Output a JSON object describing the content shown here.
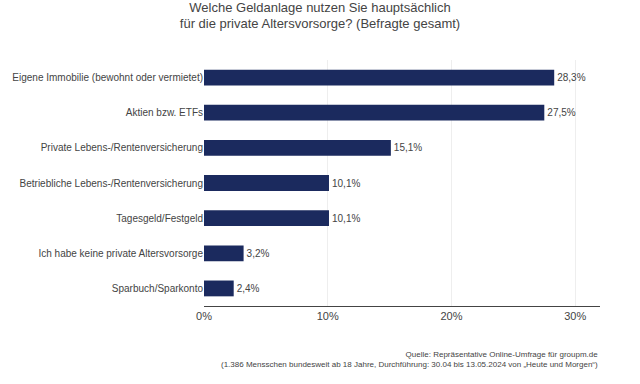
{
  "chart_data": {
    "type": "bar",
    "orientation": "horizontal",
    "title": "Welche Geldanlage nutzen Sie hauptsächlich\nfür die private Altersvorsorge? (Befragte gesamt)",
    "annotations": [
      "Quelle: Repräsentative Online-Umfrage für groupm.de\n(1.386 Mensschen bundesweit ab 18 Jahre, Durchführung: 30.04 bis 13.05.2024 von „Heute und Morgen“)"
    ],
    "categories": [
      "Sparbuch/Sparkonto",
      "Ich habe keine private Altersvorsorge",
      "Tagesgeld/Festgeld",
      "Betriebliche Lebens-/Rentenversicherung",
      "Private Lebens-/Rentenversicherung",
      "Aktien bzw. ETFs",
      "Eigene Immobilie (bewohnt oder vermietet)"
    ],
    "values": [
      2.4,
      3.2,
      10.1,
      10.1,
      15.1,
      27.5,
      28.3
    ],
    "value_labels": [
      "2,4%",
      "3,2%",
      "10,1%",
      "10,1%",
      "15,1%",
      "27,5%",
      "28,3%"
    ],
    "data_labels": true,
    "color": "#1b2a5e",
    "xlim": [
      0,
      32
    ],
    "xticks": [
      {
        "value": 0,
        "label": "0%"
      },
      {
        "value": 10,
        "label": "10%"
      },
      {
        "value": 20,
        "label": "20%"
      },
      {
        "value": 30,
        "label": "30%"
      }
    ],
    "grid": true
  }
}
